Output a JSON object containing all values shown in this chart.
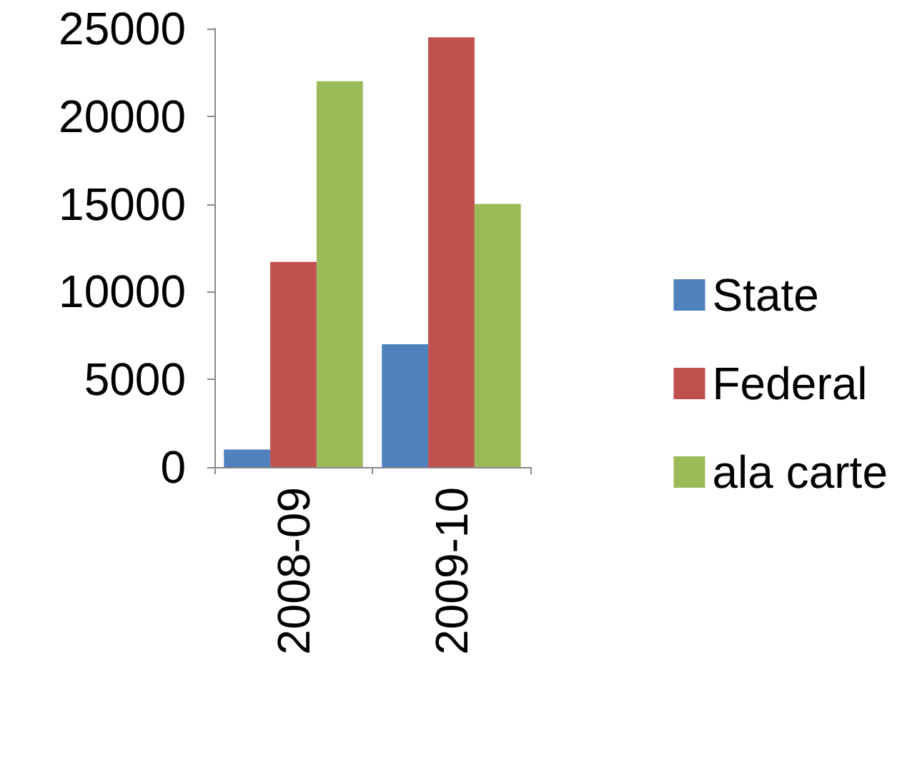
{
  "chart_data": {
    "type": "bar",
    "categories": [
      "2008-09",
      "2009-10"
    ],
    "series": [
      {
        "name": "State",
        "color": "#4f81bd",
        "values": [
          1000,
          7000
        ]
      },
      {
        "name": "Federal",
        "color": "#c0504d",
        "values": [
          11700,
          24500
        ]
      },
      {
        "name": "ala carte",
        "color": "#9bbb59",
        "values": [
          22000,
          15000
        ]
      }
    ],
    "ylim": [
      0,
      25000
    ],
    "yticks": [
      0,
      5000,
      10000,
      15000,
      20000,
      25000
    ],
    "grid": false,
    "legend": "right"
  }
}
